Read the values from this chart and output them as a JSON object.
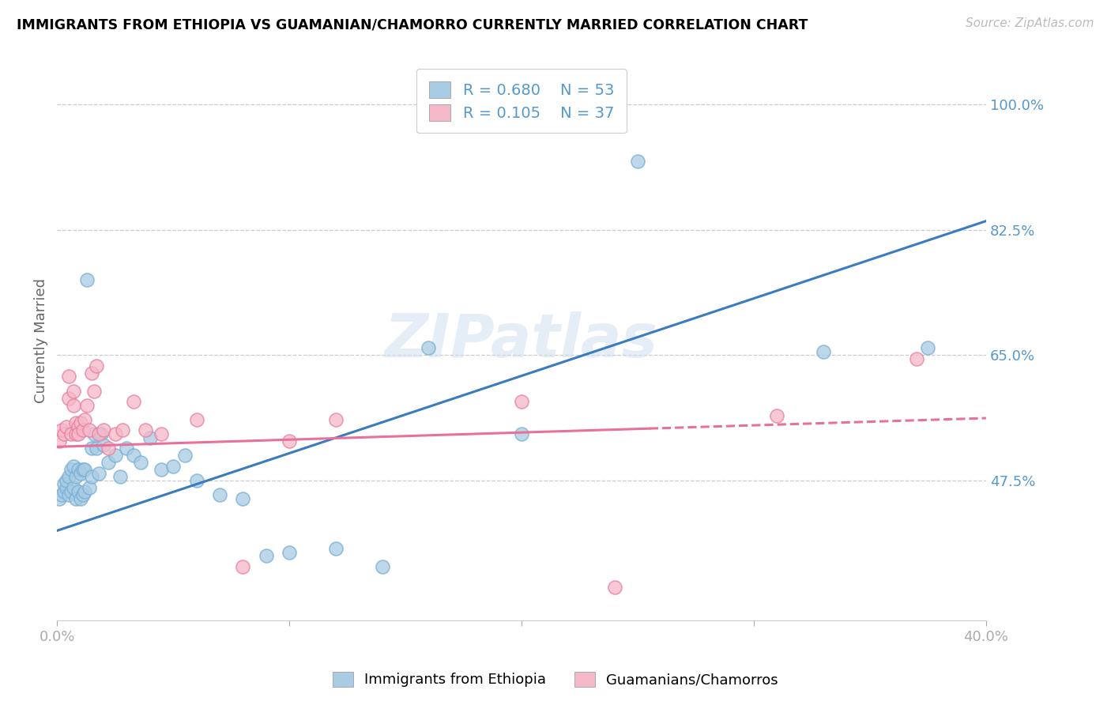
{
  "title": "IMMIGRANTS FROM ETHIOPIA VS GUAMANIAN/CHAMORRO CURRENTLY MARRIED CORRELATION CHART",
  "source": "Source: ZipAtlas.com",
  "ylabel": "Currently Married",
  "ytick_values": [
    1.0,
    0.825,
    0.65,
    0.475
  ],
  "xmin": 0.0,
  "xmax": 0.4,
  "ymin": 0.28,
  "ymax": 1.06,
  "color_blue": "#a8cce4",
  "color_blue_edge": "#7aafd4",
  "color_pink": "#f5b8c8",
  "color_pink_edge": "#e87fa0",
  "color_line_blue": "#3a7bbf",
  "color_line_pink": "#e8719a",
  "color_ytick": "#5599cc",
  "watermark": "ZIPatlas",
  "legend_label1": "Immigrants from Ethiopia",
  "legend_label2": "Guamanians/Chamorros",
  "legend_R1": "R = 0.680",
  "legend_N1": "N = 53",
  "legend_R2": "R = 0.105",
  "legend_N2": "N = 37",
  "blue_slope": 1.08,
  "blue_intercept": 0.405,
  "pink_slope": 0.1,
  "pink_intercept": 0.522,
  "blue_x": [
    0.001,
    0.002,
    0.003,
    0.003,
    0.004,
    0.004,
    0.005,
    0.005,
    0.006,
    0.006,
    0.007,
    0.007,
    0.008,
    0.008,
    0.009,
    0.009,
    0.01,
    0.01,
    0.011,
    0.011,
    0.012,
    0.012,
    0.013,
    0.014,
    0.015,
    0.015,
    0.016,
    0.017,
    0.018,
    0.019,
    0.02,
    0.022,
    0.025,
    0.027,
    0.03,
    0.033,
    0.036,
    0.04,
    0.045,
    0.05,
    0.055,
    0.06,
    0.07,
    0.08,
    0.09,
    0.1,
    0.12,
    0.14,
    0.16,
    0.2,
    0.25,
    0.33,
    0.375
  ],
  "blue_y": [
    0.45,
    0.455,
    0.46,
    0.47,
    0.465,
    0.475,
    0.455,
    0.48,
    0.46,
    0.49,
    0.465,
    0.495,
    0.45,
    0.48,
    0.46,
    0.49,
    0.45,
    0.485,
    0.455,
    0.49,
    0.46,
    0.49,
    0.755,
    0.465,
    0.48,
    0.52,
    0.54,
    0.52,
    0.485,
    0.54,
    0.525,
    0.5,
    0.51,
    0.48,
    0.52,
    0.51,
    0.5,
    0.535,
    0.49,
    0.495,
    0.51,
    0.475,
    0.455,
    0.45,
    0.37,
    0.375,
    0.38,
    0.355,
    0.66,
    0.54,
    0.92,
    0.655,
    0.66
  ],
  "pink_x": [
    0.001,
    0.002,
    0.003,
    0.004,
    0.005,
    0.005,
    0.006,
    0.007,
    0.007,
    0.008,
    0.008,
    0.009,
    0.009,
    0.01,
    0.011,
    0.012,
    0.013,
    0.014,
    0.015,
    0.016,
    0.017,
    0.018,
    0.02,
    0.022,
    0.025,
    0.028,
    0.033,
    0.038,
    0.045,
    0.06,
    0.08,
    0.1,
    0.12,
    0.2,
    0.24,
    0.31,
    0.37
  ],
  "pink_y": [
    0.53,
    0.545,
    0.54,
    0.55,
    0.59,
    0.62,
    0.54,
    0.58,
    0.6,
    0.54,
    0.555,
    0.55,
    0.54,
    0.555,
    0.545,
    0.56,
    0.58,
    0.545,
    0.625,
    0.6,
    0.635,
    0.54,
    0.545,
    0.52,
    0.54,
    0.545,
    0.585,
    0.545,
    0.54,
    0.56,
    0.355,
    0.53,
    0.56,
    0.585,
    0.326,
    0.565,
    0.645
  ]
}
